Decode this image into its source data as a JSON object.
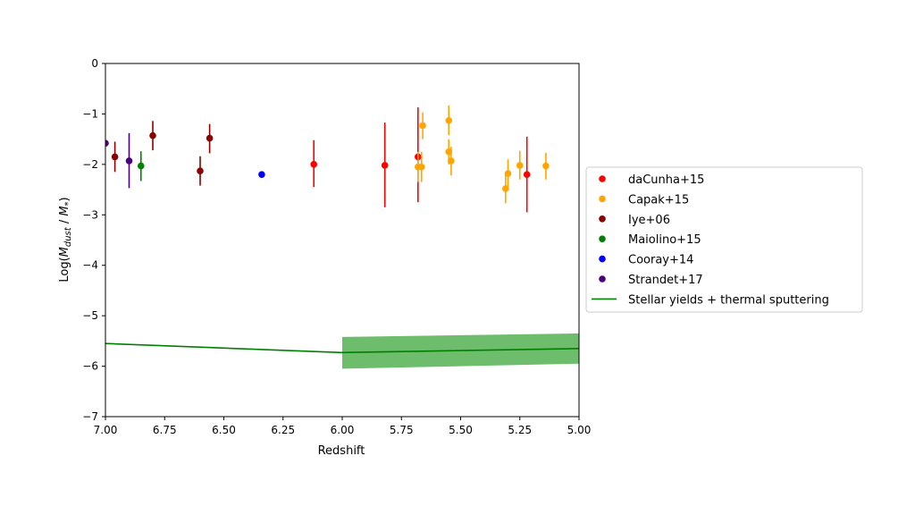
{
  "chart_data": {
    "type": "scatter",
    "title": "",
    "xlabel": "Redshift",
    "ylabel_parts": [
      "Log(",
      "M",
      "dust",
      " / ",
      "M",
      "*",
      ")"
    ],
    "xlim": [
      7.0,
      5.0
    ],
    "ylim": [
      -7,
      0
    ],
    "x_inverted": true,
    "xticks": [
      "7.00",
      "6.75",
      "6.50",
      "6.25",
      "6.00",
      "5.75",
      "5.50",
      "5.25",
      "5.00"
    ],
    "xtick_values": [
      7.0,
      6.75,
      6.5,
      6.25,
      6.0,
      5.75,
      5.5,
      5.25,
      5.0
    ],
    "yticks": [
      "0",
      "−1",
      "−2",
      "−3",
      "−4",
      "−5",
      "−6",
      "−7"
    ],
    "ytick_values": [
      0,
      -1,
      -2,
      -3,
      -4,
      -5,
      -6,
      -7
    ],
    "grid": false,
    "legend_position": "right",
    "series": [
      {
        "name": "daCunha+15",
        "color": "#ff0000",
        "points": [
          {
            "x": 6.12,
            "y": -2.0,
            "ylo": -2.45,
            "yhi": -1.52
          },
          {
            "x": 5.82,
            "y": -2.02,
            "ylo": -2.85,
            "yhi": -1.17
          },
          {
            "x": 5.68,
            "y": -1.85,
            "ylo": -2.75,
            "yhi": -0.87
          },
          {
            "x": 5.22,
            "y": -2.2,
            "ylo": -2.95,
            "yhi": -1.45
          }
        ]
      },
      {
        "name": "Capak+15",
        "color": "#ffa500",
        "points": [
          {
            "x": 5.68,
            "y": -2.05,
            "ylo": -2.35,
            "yhi": -1.75
          },
          {
            "x": 5.665,
            "y": -2.05,
            "ylo": -2.35,
            "yhi": -1.75
          },
          {
            "x": 5.66,
            "y": -1.23,
            "ylo": -1.5,
            "yhi": -0.97
          },
          {
            "x": 5.55,
            "y": -1.13,
            "ylo": -1.42,
            "yhi": -0.83
          },
          {
            "x": 5.55,
            "y": -1.75,
            "ylo": -2.0,
            "yhi": -1.5
          },
          {
            "x": 5.54,
            "y": -1.93,
            "ylo": -2.22,
            "yhi": -1.65
          },
          {
            "x": 5.31,
            "y": -2.48,
            "ylo": -2.77,
            "yhi": -2.2
          },
          {
            "x": 5.3,
            "y": -2.18,
            "ylo": -2.45,
            "yhi": -1.9
          },
          {
            "x": 5.25,
            "y": -2.02,
            "ylo": -2.3,
            "yhi": -1.73
          },
          {
            "x": 5.14,
            "y": -2.03,
            "ylo": -2.3,
            "yhi": -1.77
          }
        ]
      },
      {
        "name": "Iye+06",
        "color": "#8b0000",
        "points": [
          {
            "x": 6.96,
            "y": -1.85,
            "ylo": -2.15,
            "yhi": -1.55
          },
          {
            "x": 6.8,
            "y": -1.43,
            "ylo": -1.72,
            "yhi": -1.14
          },
          {
            "x": 6.6,
            "y": -2.13,
            "ylo": -2.42,
            "yhi": -1.84
          },
          {
            "x": 6.56,
            "y": -1.48,
            "ylo": -1.78,
            "yhi": -1.2
          }
        ]
      },
      {
        "name": "Maiolino+15",
        "color": "#008000",
        "points": [
          {
            "x": 6.85,
            "y": -2.03,
            "ylo": -2.33,
            "yhi": -1.74
          }
        ]
      },
      {
        "name": "Cooray+14",
        "color": "#0000ff",
        "points": [
          {
            "x": 6.34,
            "y": -2.2
          }
        ]
      },
      {
        "name": "Strandet+17",
        "color": "#4b0082",
        "points": [
          {
            "x": 6.9,
            "y": -1.93,
            "ylo": -2.47,
            "yhi": -1.38
          },
          {
            "x": 7.0,
            "y": -1.58
          }
        ]
      }
    ],
    "model": {
      "name": "Stellar yields + thermal sputtering",
      "color": "#008000",
      "band_color": "#6dbd6d",
      "line": [
        {
          "x": 7.0,
          "y": -5.55
        },
        {
          "x": 6.0,
          "y": -5.73
        },
        {
          "x": 5.0,
          "y": -5.65
        }
      ],
      "band": [
        {
          "x": 6.0,
          "lo": -6.05,
          "hi": -5.42
        },
        {
          "x": 5.0,
          "lo": -5.95,
          "hi": -5.35
        }
      ]
    }
  }
}
